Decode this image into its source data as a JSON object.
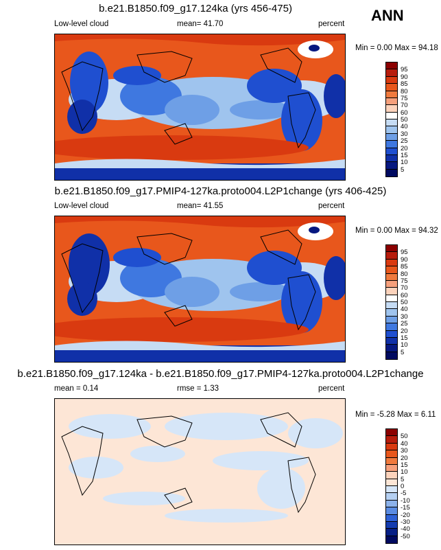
{
  "season": "ANN",
  "panels": [
    {
      "title": "b.e21.B1850.f09_g17.124ka (yrs 456-475)",
      "left_label": "Low-level cloud",
      "center_label": "mean=  41.70",
      "units": "percent",
      "minmax": "Min =   0.00 Max =  94.18",
      "colorbar": {
        "levels": [
          "95",
          "90",
          "85",
          "80",
          "75",
          "70",
          "60",
          "50",
          "40",
          "30",
          "25",
          "20",
          "15",
          "10",
          "5"
        ],
        "colors": [
          "#8b0000",
          "#b71c0c",
          "#d93a10",
          "#e8571c",
          "#f07a3e",
          "#f6a07c",
          "#fcd3bc",
          "#ffffff",
          "#c6dcf4",
          "#9fc4ee",
          "#6e9fe6",
          "#3f78e0",
          "#1f4fd0",
          "#1030a8",
          "#061880",
          "#000a60"
        ]
      }
    },
    {
      "title": "b.e21.B1850.f09_g17.PMIP4-127ka.proto004.L2P1change (yrs 406-425)",
      "left_label": "Low-level cloud",
      "center_label": "mean=  41.55",
      "units": "percent",
      "minmax": "Min =   0.00 Max =  94.32",
      "colorbar": {
        "levels": [
          "95",
          "90",
          "85",
          "80",
          "75",
          "70",
          "60",
          "50",
          "40",
          "30",
          "25",
          "20",
          "15",
          "10",
          "5"
        ],
        "colors": [
          "#8b0000",
          "#b71c0c",
          "#d93a10",
          "#e8571c",
          "#f07a3e",
          "#f6a07c",
          "#fcd3bc",
          "#ffffff",
          "#c6dcf4",
          "#9fc4ee",
          "#6e9fe6",
          "#3f78e0",
          "#1f4fd0",
          "#1030a8",
          "#061880",
          "#000a60"
        ]
      }
    },
    {
      "title": "b.e21.B1850.f09_g17.124ka - b.e21.B1850.f09_g17.PMIP4-127ka.proto004.L2P1change",
      "left_label": "mean =   0.14",
      "center_label": "rmse =   1.33",
      "units": "percent",
      "minmax": "Min =  -5.28 Max =   6.11",
      "colorbar": {
        "levels": [
          "50",
          "40",
          "30",
          "20",
          "15",
          "10",
          "5",
          "0",
          "-5",
          "-10",
          "-15",
          "-20",
          "-30",
          "-40",
          "-50"
        ],
        "colors": [
          "#8b0000",
          "#b71c0c",
          "#d93a10",
          "#e8571c",
          "#f07a3e",
          "#f6a07c",
          "#fcd3bc",
          "#fde6d6",
          "#d6e6f8",
          "#b5d0f2",
          "#8cb2ea",
          "#5b8ce2",
          "#2f62d6",
          "#143cb0",
          "#061f86",
          "#000a60"
        ]
      }
    }
  ],
  "chart_data": [
    {
      "type": "heatmap",
      "title": "b.e21.B1850.f09_g17.124ka (yrs 456-475)",
      "variable": "Low-level cloud",
      "units": "percent",
      "mean": 41.7,
      "min": 0.0,
      "max": 94.18,
      "contour_levels": [
        5,
        10,
        15,
        20,
        25,
        30,
        40,
        50,
        60,
        70,
        75,
        80,
        85,
        90,
        95
      ]
    },
    {
      "type": "heatmap",
      "title": "b.e21.B1850.f09_g17.PMIP4-127ka.proto004.L2P1change (yrs 406-425)",
      "variable": "Low-level cloud",
      "units": "percent",
      "mean": 41.55,
      "min": 0.0,
      "max": 94.32,
      "contour_levels": [
        5,
        10,
        15,
        20,
        25,
        30,
        40,
        50,
        60,
        70,
        75,
        80,
        85,
        90,
        95
      ]
    },
    {
      "type": "heatmap",
      "title": "b.e21.B1850.f09_g17.124ka - b.e21.B1850.f09_g17.PMIP4-127ka.proto004.L2P1change",
      "units": "percent",
      "mean": 0.14,
      "rmse": 1.33,
      "min": -5.28,
      "max": 6.11,
      "contour_levels": [
        -50,
        -40,
        -30,
        -20,
        -15,
        -10,
        -5,
        0,
        5,
        10,
        15,
        20,
        30,
        40,
        50
      ]
    }
  ]
}
